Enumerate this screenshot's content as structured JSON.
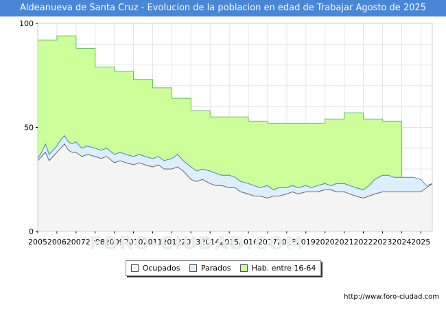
{
  "chart_data": {
    "type": "area",
    "title": "Aldeanueva de Santa Cruz - Evolucion de la poblacion en edad de Trabajar Agosto de 2025",
    "xlabel": "",
    "ylabel": "",
    "ylim": [
      0,
      100
    ],
    "xlim": [
      2005,
      2025.6
    ],
    "y_ticks": [
      "0",
      "50",
      "100"
    ],
    "x_ticks": [
      "2005",
      "2006",
      "2007",
      "2008",
      "2009",
      "2010",
      "2011",
      "2012",
      "2013",
      "2014",
      "2015",
      "2016",
      "2017",
      "2018",
      "2019",
      "2020",
      "2021",
      "2022",
      "2023",
      "2024",
      "2025"
    ],
    "grid": true,
    "legend_position": "bottom",
    "series": [
      {
        "name": "Hab. entre 16-64",
        "color": "#ccff99",
        "line_color": "#66bb66",
        "step": true,
        "points": [
          [
            2005.0,
            92
          ],
          [
            2006.0,
            94
          ],
          [
            2007.0,
            88
          ],
          [
            2008.0,
            79
          ],
          [
            2009.0,
            77
          ],
          [
            2010.0,
            73
          ],
          [
            2011.0,
            69
          ],
          [
            2012.0,
            64
          ],
          [
            2013.0,
            58
          ],
          [
            2014.0,
            55
          ],
          [
            2015.0,
            55
          ],
          [
            2016.0,
            53
          ],
          [
            2017.0,
            52
          ],
          [
            2018.0,
            52
          ],
          [
            2019.0,
            52
          ],
          [
            2020.0,
            54
          ],
          [
            2021.0,
            57
          ],
          [
            2022.0,
            54
          ],
          [
            2023.0,
            53
          ],
          [
            2024.0,
            0
          ]
        ]
      },
      {
        "name": "Parados",
        "color": "#ddeeff",
        "line_color": "#4a7fc0",
        "points": [
          [
            2005.0,
            35
          ],
          [
            2005.2,
            38
          ],
          [
            2005.4,
            42
          ],
          [
            2005.6,
            37
          ],
          [
            2005.8,
            39
          ],
          [
            2006.0,
            41
          ],
          [
            2006.2,
            44
          ],
          [
            2006.4,
            46
          ],
          [
            2006.6,
            43
          ],
          [
            2006.8,
            42
          ],
          [
            2007.0,
            43
          ],
          [
            2007.3,
            40
          ],
          [
            2007.6,
            41
          ],
          [
            2008.0,
            40
          ],
          [
            2008.3,
            39
          ],
          [
            2008.6,
            40
          ],
          [
            2009.0,
            37
          ],
          [
            2009.3,
            38
          ],
          [
            2009.6,
            37
          ],
          [
            2010.0,
            36
          ],
          [
            2010.3,
            37
          ],
          [
            2010.6,
            36
          ],
          [
            2011.0,
            35
          ],
          [
            2011.3,
            36
          ],
          [
            2011.6,
            34
          ],
          [
            2012.0,
            35
          ],
          [
            2012.3,
            37
          ],
          [
            2012.6,
            34
          ],
          [
            2013.0,
            31
          ],
          [
            2013.3,
            29
          ],
          [
            2013.6,
            30
          ],
          [
            2014.0,
            29
          ],
          [
            2014.3,
            28
          ],
          [
            2014.6,
            27
          ],
          [
            2015.0,
            27
          ],
          [
            2015.3,
            26
          ],
          [
            2015.6,
            24
          ],
          [
            2016.0,
            23
          ],
          [
            2016.3,
            22
          ],
          [
            2016.6,
            21
          ],
          [
            2017.0,
            22
          ],
          [
            2017.3,
            20
          ],
          [
            2017.6,
            21
          ],
          [
            2018.0,
            21
          ],
          [
            2018.3,
            22
          ],
          [
            2018.6,
            21
          ],
          [
            2019.0,
            22
          ],
          [
            2019.3,
            21
          ],
          [
            2019.6,
            22
          ],
          [
            2020.0,
            23
          ],
          [
            2020.3,
            22
          ],
          [
            2020.6,
            23
          ],
          [
            2021.0,
            23
          ],
          [
            2021.3,
            22
          ],
          [
            2021.6,
            21
          ],
          [
            2022.0,
            20
          ],
          [
            2022.3,
            22
          ],
          [
            2022.6,
            25
          ],
          [
            2023.0,
            27
          ],
          [
            2023.3,
            27
          ],
          [
            2023.6,
            26
          ],
          [
            2024.0,
            26
          ],
          [
            2024.3,
            26
          ],
          [
            2024.6,
            26
          ],
          [
            2025.0,
            25
          ],
          [
            2025.3,
            22
          ],
          [
            2025.6,
            23
          ]
        ]
      },
      {
        "name": "Ocupados",
        "color": "#f4f4f4",
        "line_color": "#666666",
        "points": [
          [
            2005.0,
            34
          ],
          [
            2005.2,
            36
          ],
          [
            2005.4,
            38
          ],
          [
            2005.6,
            34
          ],
          [
            2005.8,
            36
          ],
          [
            2006.0,
            38
          ],
          [
            2006.2,
            40
          ],
          [
            2006.4,
            42
          ],
          [
            2006.6,
            39
          ],
          [
            2006.8,
            38
          ],
          [
            2007.0,
            38
          ],
          [
            2007.3,
            36
          ],
          [
            2007.6,
            37
          ],
          [
            2008.0,
            36
          ],
          [
            2008.3,
            35
          ],
          [
            2008.6,
            36
          ],
          [
            2009.0,
            33
          ],
          [
            2009.3,
            34
          ],
          [
            2009.6,
            33
          ],
          [
            2010.0,
            32
          ],
          [
            2010.3,
            33
          ],
          [
            2010.6,
            32
          ],
          [
            2011.0,
            31
          ],
          [
            2011.3,
            32
          ],
          [
            2011.6,
            30
          ],
          [
            2012.0,
            30
          ],
          [
            2012.3,
            31
          ],
          [
            2012.6,
            29
          ],
          [
            2013.0,
            25
          ],
          [
            2013.3,
            24
          ],
          [
            2013.6,
            25
          ],
          [
            2014.0,
            23
          ],
          [
            2014.3,
            22
          ],
          [
            2014.6,
            22
          ],
          [
            2015.0,
            21
          ],
          [
            2015.3,
            21
          ],
          [
            2015.6,
            19
          ],
          [
            2016.0,
            18
          ],
          [
            2016.3,
            17
          ],
          [
            2016.6,
            17
          ],
          [
            2017.0,
            16
          ],
          [
            2017.3,
            17
          ],
          [
            2017.6,
            17
          ],
          [
            2018.0,
            18
          ],
          [
            2018.3,
            19
          ],
          [
            2018.6,
            18
          ],
          [
            2019.0,
            19
          ],
          [
            2019.3,
            19
          ],
          [
            2019.6,
            19
          ],
          [
            2020.0,
            20
          ],
          [
            2020.3,
            20
          ],
          [
            2020.6,
            19
          ],
          [
            2021.0,
            19
          ],
          [
            2021.3,
            18
          ],
          [
            2021.6,
            17
          ],
          [
            2022.0,
            16
          ],
          [
            2022.3,
            17
          ],
          [
            2022.6,
            18
          ],
          [
            2023.0,
            19
          ],
          [
            2023.3,
            19
          ],
          [
            2023.6,
            19
          ],
          [
            2024.0,
            19
          ],
          [
            2024.3,
            19
          ],
          [
            2024.6,
            19
          ],
          [
            2025.0,
            19
          ],
          [
            2025.3,
            21
          ],
          [
            2025.6,
            23
          ]
        ]
      }
    ]
  },
  "legend": {
    "items": [
      {
        "label": "Ocupados",
        "color": "#f4f4f4"
      },
      {
        "label": "Parados",
        "color": "#ddeeff"
      },
      {
        "label": "Hab. entre 16-64",
        "color": "#ccff99"
      }
    ]
  },
  "footer": {
    "source_url": "http://www.foro-ciudad.com",
    "watermark": "FORO-CIUDAD.COM"
  }
}
